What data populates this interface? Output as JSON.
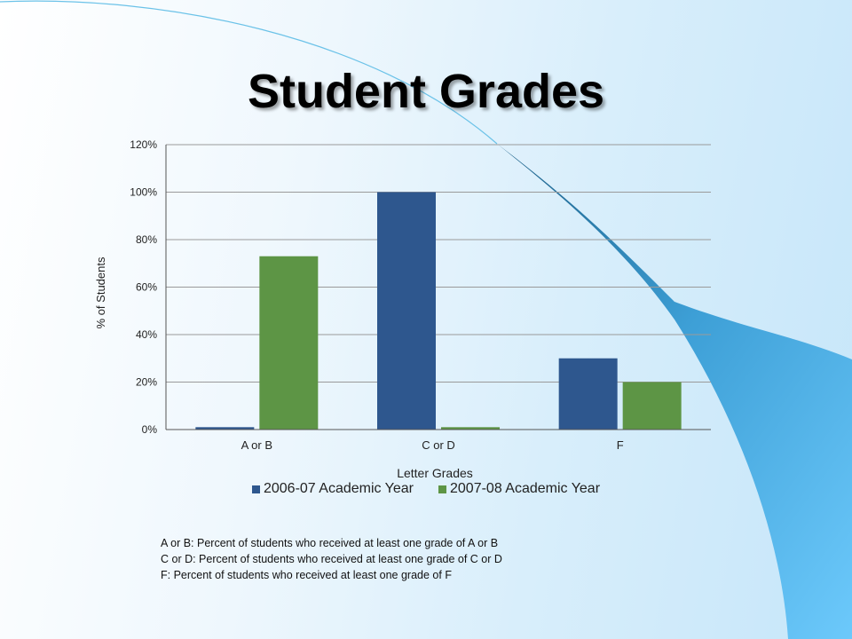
{
  "slide": {
    "title": "Student Grades",
    "notes": [
      "A or B: Percent of students who received at least one grade of A or B",
      "C or D: Percent of students who received at least one grade of C or D",
      "F: Percent of students who received at least one grade of F"
    ]
  },
  "colors": {
    "series_2006": "#2e578e",
    "series_2007": "#5d9545",
    "gridline": "#9a9a9a",
    "swoosh_dark": "#1d5f86",
    "swoosh_light": "#6cc9fb"
  },
  "chart_data": {
    "type": "bar",
    "categories": [
      "A or B",
      "C or D",
      "F"
    ],
    "series": [
      {
        "name": "2006-07 Academic Year",
        "values": [
          1,
          100,
          30
        ]
      },
      {
        "name": "2007-08 Academic Year",
        "values": [
          73,
          1,
          20
        ]
      }
    ],
    "xlabel": "Letter Grades",
    "ylabel": "% of Students",
    "ylim": [
      0,
      120
    ],
    "yticks": [
      0,
      20,
      40,
      60,
      80,
      100,
      120
    ],
    "tick_format": "percent",
    "grid": true,
    "legend_position": "bottom"
  }
}
